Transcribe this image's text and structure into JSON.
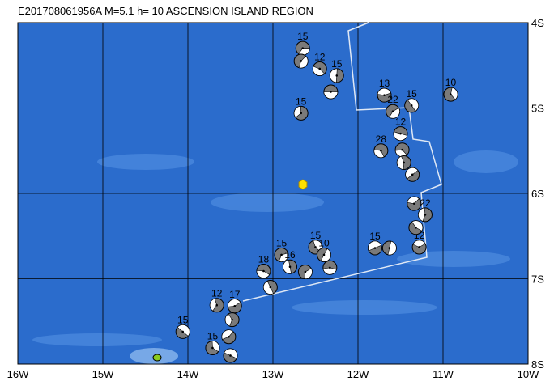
{
  "title": "E201708061956A M=5.1 h= 10 ASCENSION ISLAND REGION",
  "lon_ticks": [
    {
      "value": -16,
      "label": "16W"
    },
    {
      "value": -15,
      "label": "15W"
    },
    {
      "value": -14,
      "label": "14W"
    },
    {
      "value": -13,
      "label": "13W"
    },
    {
      "value": -12,
      "label": "12W"
    },
    {
      "value": -11,
      "label": "11W"
    },
    {
      "value": -10,
      "label": "10W"
    }
  ],
  "lat_ticks": [
    {
      "value": -4,
      "label": "4S"
    },
    {
      "value": -5,
      "label": "5S"
    },
    {
      "value": -6,
      "label": "6S"
    },
    {
      "value": -7,
      "label": "7S"
    },
    {
      "value": -8,
      "label": "8S"
    }
  ],
  "events": [
    {
      "lon": -12.65,
      "lat": -4.3,
      "depth": 15
    },
    {
      "lon": -12.45,
      "lat": -4.54,
      "depth": 12
    },
    {
      "lon": -12.25,
      "lat": -4.62,
      "depth": 15
    },
    {
      "lon": -12.67,
      "lat": -5.06,
      "depth": 15
    },
    {
      "lon": -11.69,
      "lat": -4.85,
      "depth": 13
    },
    {
      "lon": -11.37,
      "lat": -4.97,
      "depth": 15
    },
    {
      "lon": -10.91,
      "lat": -4.84,
      "depth": 10
    },
    {
      "lon": -11.59,
      "lat": -5.04,
      "depth": 22
    },
    {
      "lon": -11.5,
      "lat": -5.3,
      "depth": 12
    },
    {
      "lon": -11.73,
      "lat": -5.5,
      "depth": 28
    },
    {
      "lon": -11.21,
      "lat": -6.25,
      "depth": 22
    },
    {
      "lon": -11.8,
      "lat": -6.64,
      "depth": 15
    },
    {
      "lon": -11.28,
      "lat": -6.63,
      "depth": 12
    },
    {
      "lon": -12.5,
      "lat": -6.63,
      "depth": 15
    },
    {
      "lon": -12.4,
      "lat": -6.72,
      "depth": 10
    },
    {
      "lon": -12.9,
      "lat": -6.72,
      "depth": 15
    },
    {
      "lon": -13.11,
      "lat": -6.91,
      "depth": 18
    },
    {
      "lon": -12.8,
      "lat": -6.86,
      "depth": 16
    },
    {
      "lon": -13.66,
      "lat": -7.31,
      "depth": 12
    },
    {
      "lon": -13.45,
      "lat": -7.32,
      "depth": 17
    },
    {
      "lon": -14.06,
      "lat": -7.62,
      "depth": 15
    },
    {
      "lon": -13.71,
      "lat": -7.81,
      "depth": 15
    },
    {
      "lon": -12.67,
      "lat": -4.45,
      "depth": null
    },
    {
      "lon": -12.32,
      "lat": -4.81,
      "depth": null
    },
    {
      "lon": -11.48,
      "lat": -5.49,
      "depth": null
    },
    {
      "lon": -11.46,
      "lat": -5.64,
      "depth": null
    },
    {
      "lon": -11.36,
      "lat": -5.78,
      "depth": null
    },
    {
      "lon": -11.34,
      "lat": -6.12,
      "depth": null
    },
    {
      "lon": -11.32,
      "lat": -6.4,
      "depth": null
    },
    {
      "lon": -11.63,
      "lat": -6.64,
      "depth": null
    },
    {
      "lon": -12.62,
      "lat": -6.92,
      "depth": null
    },
    {
      "lon": -12.33,
      "lat": -6.87,
      "depth": null
    },
    {
      "lon": -13.03,
      "lat": -7.1,
      "depth": null
    },
    {
      "lon": -13.48,
      "lat": -7.48,
      "depth": null
    },
    {
      "lon": -13.52,
      "lat": -7.68,
      "depth": null
    },
    {
      "lon": -13.5,
      "lat": -7.9,
      "depth": null
    }
  ]
}
